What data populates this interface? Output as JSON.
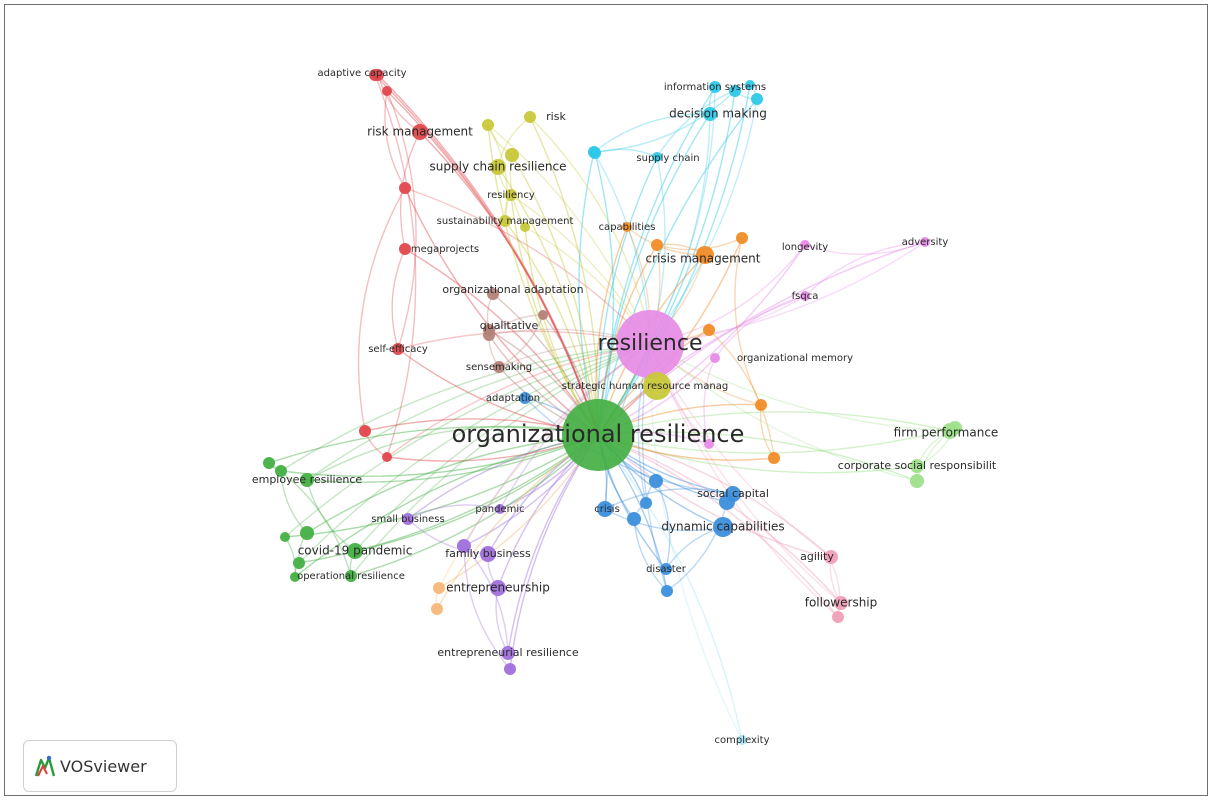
{
  "app": {
    "name": "VOSviewer"
  },
  "colors": {
    "red": "#e0474c",
    "green": "#44b044",
    "blue": "#3c8fdc",
    "yellow": "#c8c83a",
    "purple": "#a070dc",
    "cyan": "#2ec8e8",
    "orange": "#f08c28",
    "pink": "#e68ce6",
    "brown": "#b48278",
    "lightorange": "#f5b878",
    "lightgreen": "#9ee08a",
    "lightpink": "#f0a0b8",
    "lightcyan": "#a8e6f2"
  },
  "nodes": [
    {
      "label": "organizational resilience",
      "cluster": "green",
      "weight": 100
    },
    {
      "label": "resilience",
      "cluster": "pink",
      "weight": 70
    },
    {
      "label": "strategic human resource manag",
      "cluster": "yellow",
      "weight": 14
    },
    {
      "label": "adaptive capacity",
      "cluster": "red",
      "weight": 6
    },
    {
      "label": "information systems",
      "cluster": "cyan",
      "weight": 6
    },
    {
      "label": "risk",
      "cluster": "yellow",
      "weight": 6
    },
    {
      "label": "decision making",
      "cluster": "cyan",
      "weight": 8
    },
    {
      "label": "risk management",
      "cluster": "red",
      "weight": 10
    },
    {
      "label": "supply chain",
      "cluster": "cyan",
      "weight": 6
    },
    {
      "label": "supply chain resilience",
      "cluster": "yellow",
      "weight": 10
    },
    {
      "label": "resiliency",
      "cluster": "yellow",
      "weight": 6
    },
    {
      "label": "sustainability management",
      "cluster": "yellow",
      "weight": 5
    },
    {
      "label": "capabilities",
      "cluster": "orange",
      "weight": 5
    },
    {
      "label": "megaprojects",
      "cluster": "red",
      "weight": 6
    },
    {
      "label": "crisis management",
      "cluster": "orange",
      "weight": 12
    },
    {
      "label": "longevity",
      "cluster": "pink",
      "weight": 5
    },
    {
      "label": "adversity",
      "cluster": "pink",
      "weight": 5
    },
    {
      "label": "organizational adaptation",
      "cluster": "brown",
      "weight": 6
    },
    {
      "label": "fsqca",
      "cluster": "pink",
      "weight": 5
    },
    {
      "label": "qualitative",
      "cluster": "brown",
      "weight": 7
    },
    {
      "label": "self-efficacy",
      "cluster": "red",
      "weight": 6
    },
    {
      "label": "organizational memory",
      "cluster": "pink",
      "weight": 5
    },
    {
      "label": "sensemaking",
      "cluster": "brown",
      "weight": 6
    },
    {
      "label": "adaptation",
      "cluster": "blue",
      "weight": 5
    },
    {
      "label": "firm performance",
      "cluster": "lightgreen",
      "weight": 8
    },
    {
      "label": "corporate social responsibilit",
      "cluster": "lightgreen",
      "weight": 7
    },
    {
      "label": "employee resilience",
      "cluster": "green",
      "weight": 8
    },
    {
      "label": "social capital",
      "cluster": "blue",
      "weight": 8
    },
    {
      "label": "pandemic",
      "cluster": "purple",
      "weight": 5
    },
    {
      "label": "small business",
      "cluster": "purple",
      "weight": 6
    },
    {
      "label": "crisis",
      "cluster": "blue",
      "weight": 8
    },
    {
      "label": "dynamic capabilities",
      "cluster": "blue",
      "weight": 10
    },
    {
      "label": "covid-19 pandemic",
      "cluster": "green",
      "weight": 10
    },
    {
      "label": "family business",
      "cluster": "purple",
      "weight": 8
    },
    {
      "label": "agility",
      "cluster": "lightpink",
      "weight": 7
    },
    {
      "label": "disaster",
      "cluster": "blue",
      "weight": 6
    },
    {
      "label": "operational resilience",
      "cluster": "green",
      "weight": 6
    },
    {
      "label": "entrepreneurship",
      "cluster": "purple",
      "weight": 8
    },
    {
      "label": "followership",
      "cluster": "lightpink",
      "weight": 7
    },
    {
      "label": "entrepreneurial resilience",
      "cluster": "purple",
      "weight": 7
    },
    {
      "label": "complexity",
      "cluster": "lightcyan",
      "weight": 5
    }
  ]
}
